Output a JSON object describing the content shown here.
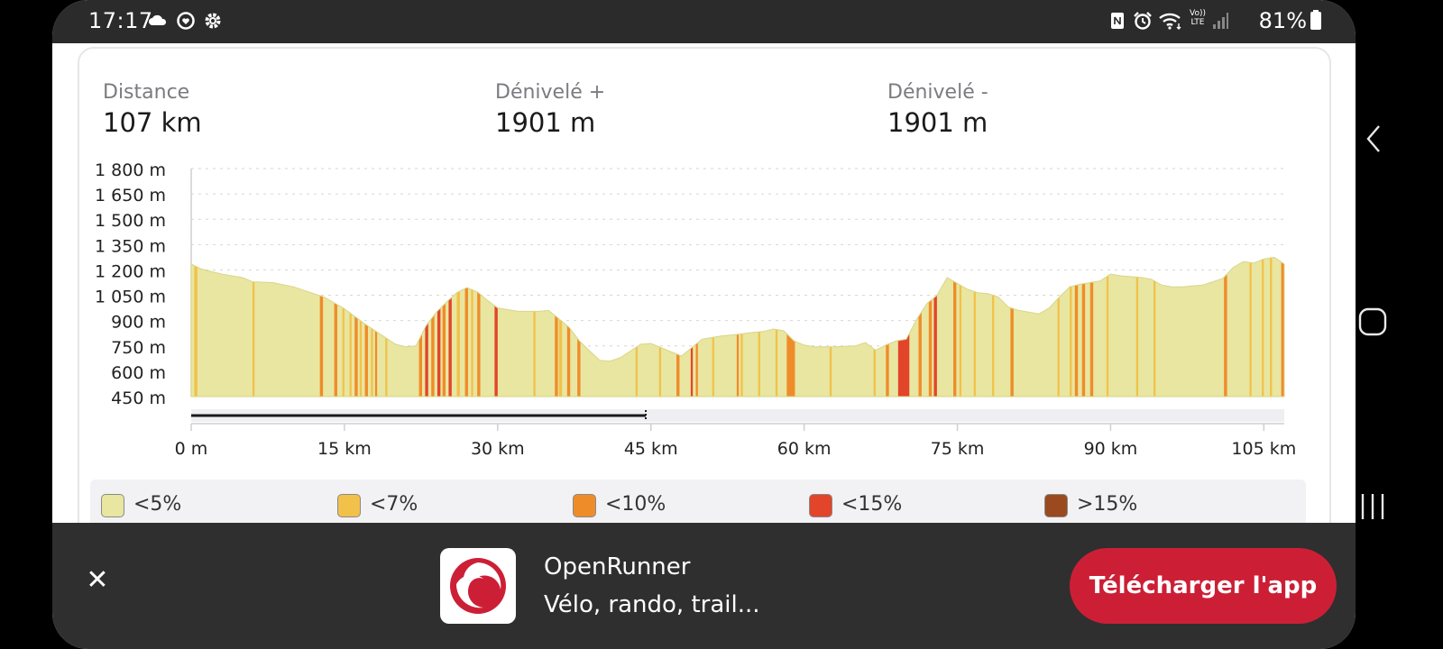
{
  "status_bar": {
    "time": "17:17",
    "battery": "81%",
    "icons_left": [
      "cloud-icon",
      "heart-refresh-icon",
      "gear-icon"
    ],
    "icons_right": [
      "nfc-icon",
      "alarm-icon",
      "wifi-icon",
      "volte-icon",
      "signal-icon",
      "battery-icon"
    ],
    "volte_label": "Vo)) LTE"
  },
  "stats": {
    "distance_label": "Distance",
    "distance_value": "107 km",
    "gain_label": "Dénivelé +",
    "gain_value": "1901 m",
    "loss_label": "Dénivelé -",
    "loss_value": "1901 m"
  },
  "legend": [
    {
      "label": "<5%",
      "color": "#e8e6a0"
    },
    {
      "label": "<7%",
      "color": "#f2c14a"
    },
    {
      "label": "<10%",
      "color": "#ef8c2a"
    },
    {
      "label": "<15%",
      "color": "#e2452a"
    },
    {
      "label": ">15%",
      "color": "#9a4a1e"
    }
  ],
  "banner": {
    "app_name": "OpenRunner",
    "app_desc": "Vélo, rando, trail...",
    "download_label": "Télécharger l'app",
    "close_icon": "close-icon",
    "brand_color": "#cc1f36"
  },
  "chart_data": {
    "type": "area",
    "title": "",
    "xlabel": "",
    "ylabel": "",
    "xlim": [
      0,
      107
    ],
    "ylim": [
      450,
      1800
    ],
    "x_ticks": [
      0,
      15,
      30,
      45,
      60,
      75,
      90,
      105
    ],
    "x_tick_labels": [
      "0 m",
      "15 km",
      "30 km",
      "45 km",
      "60 km",
      "75 km",
      "90 km",
      "105 km"
    ],
    "y_ticks": [
      1800,
      1650,
      1500,
      1350,
      1200,
      1050,
      900,
      750,
      600,
      450
    ],
    "y_tick_labels": [
      "1 800 m",
      "1 650 m",
      "1 500 m",
      "1 350 m",
      "1 200 m",
      "1 050 m",
      "900 m",
      "750 m",
      "600 m",
      "450 m"
    ],
    "grid": true,
    "range_selector": [
      0,
      44.5
    ],
    "x": [
      0,
      1,
      3,
      5,
      6,
      8,
      10,
      12,
      13,
      15,
      17,
      19,
      20,
      21,
      22,
      23,
      24,
      25,
      26,
      27,
      28,
      29,
      30,
      31,
      32,
      33,
      34,
      35,
      36,
      37,
      38,
      39,
      40,
      41,
      42,
      43,
      44,
      45,
      46,
      47,
      48,
      49,
      50,
      51,
      52,
      53,
      55,
      56,
      57,
      58,
      59,
      60,
      61,
      63,
      65,
      66,
      67,
      68,
      69,
      70,
      71,
      72,
      73,
      74,
      75,
      76,
      77,
      78,
      79,
      80,
      81,
      82,
      83,
      84,
      85,
      86,
      87,
      88,
      89,
      90,
      91,
      92,
      93,
      94,
      95,
      96,
      97,
      98,
      99,
      100,
      101,
      102,
      103,
      104,
      105,
      106,
      107
    ],
    "y": [
      1235,
      1205,
      1175,
      1155,
      1130,
      1125,
      1100,
      1060,
      1040,
      970,
      880,
      800,
      760,
      745,
      750,
      870,
      950,
      1010,
      1065,
      1095,
      1070,
      1020,
      975,
      965,
      955,
      955,
      955,
      960,
      910,
      860,
      780,
      720,
      665,
      660,
      680,
      720,
      760,
      765,
      740,
      715,
      690,
      740,
      790,
      800,
      810,
      815,
      830,
      835,
      850,
      840,
      780,
      755,
      745,
      745,
      750,
      770,
      725,
      755,
      780,
      790,
      905,
      1000,
      1050,
      1155,
      1120,
      1085,
      1065,
      1060,
      1040,
      980,
      960,
      950,
      940,
      975,
      1040,
      1100,
      1115,
      1125,
      1135,
      1175,
      1165,
      1160,
      1155,
      1145,
      1110,
      1100,
      1100,
      1105,
      1110,
      1130,
      1150,
      1215,
      1250,
      1240,
      1265,
      1275,
      1235
    ],
    "series": [
      {
        "name": "<5%",
        "x_ranges": [
          [
            0,
            107
          ]
        ]
      },
      {
        "name": "<7%",
        "x_ranges": [
          [
            0.3,
            0.6
          ],
          [
            6,
            6.2
          ],
          [
            14.8,
            15
          ],
          [
            15.5,
            15.7
          ],
          [
            16.5,
            16.7
          ],
          [
            17.6,
            17.8
          ],
          [
            19,
            19.2
          ],
          [
            26,
            26.3
          ],
          [
            27.4,
            27.6
          ],
          [
            33.5,
            33.7
          ],
          [
            36,
            36.3
          ],
          [
            43.5,
            43.7
          ],
          [
            45.8,
            46
          ],
          [
            51,
            51.2
          ],
          [
            53.8,
            54
          ],
          [
            55.5,
            55.7
          ],
          [
            57.2,
            57.4
          ],
          [
            62.5,
            62.7
          ],
          [
            66.8,
            67
          ],
          [
            75.2,
            75.4
          ],
          [
            76.6,
            76.8
          ],
          [
            78.4,
            78.6
          ],
          [
            84.8,
            85
          ],
          [
            86,
            86.2
          ],
          [
            89.6,
            89.8
          ],
          [
            92.5,
            92.7
          ],
          [
            94.2,
            94.4
          ],
          [
            103.6,
            103.8
          ],
          [
            104.8,
            105
          ],
          [
            105.6,
            105.8
          ]
        ]
      },
      {
        "name": "<10%",
        "x_ranges": [
          [
            12.6,
            12.9
          ],
          [
            14,
            14.3
          ],
          [
            16,
            16.3
          ],
          [
            17,
            17.3
          ],
          [
            18,
            18.2
          ],
          [
            22.3,
            22.6
          ],
          [
            23.5,
            23.8
          ],
          [
            24.6,
            24.9
          ],
          [
            26.8,
            27.1
          ],
          [
            28,
            28.3
          ],
          [
            35.6,
            35.9
          ],
          [
            36.8,
            37.1
          ],
          [
            37.8,
            38.1
          ],
          [
            47.5,
            47.8
          ],
          [
            49.4,
            49.6
          ],
          [
            53.4,
            53.6
          ],
          [
            58.3,
            59.1
          ],
          [
            68,
            68.3
          ],
          [
            71.2,
            71.5
          ],
          [
            72.2,
            72.5
          ],
          [
            74.6,
            74.9
          ],
          [
            80.2,
            80.5
          ],
          [
            86.5,
            86.8
          ],
          [
            87.2,
            87.5
          ],
          [
            88,
            88.3
          ],
          [
            101.1,
            101.4
          ],
          [
            106.7,
            107
          ]
        ]
      },
      {
        "name": "<15%",
        "x_ranges": [
          [
            22.9,
            23.2
          ],
          [
            24.1,
            24.4
          ],
          [
            25.2,
            25.5
          ],
          [
            29.7,
            30
          ],
          [
            48.9,
            49.1
          ],
          [
            69.2,
            70.3
          ],
          [
            72.7,
            73
          ]
        ]
      }
    ]
  }
}
